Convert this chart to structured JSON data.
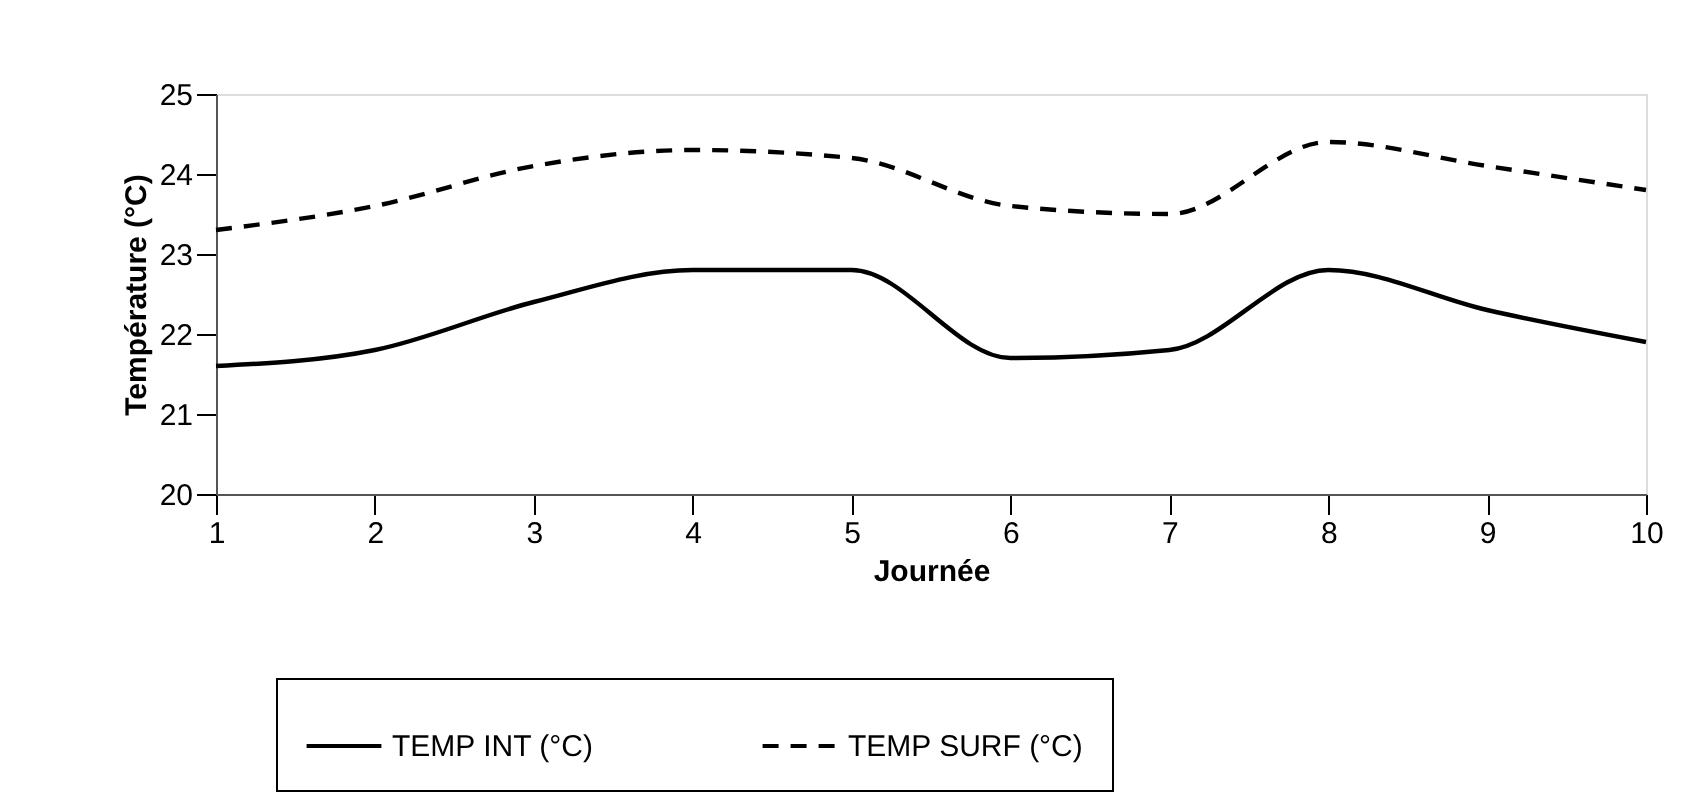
{
  "chart_data": {
    "type": "line",
    "xlabel": "Journée",
    "ylabel": "Température (°C)",
    "x": [
      1,
      2,
      3,
      4,
      5,
      6,
      7,
      8,
      9,
      10
    ],
    "series": [
      {
        "name": "TEMP INT (°C)",
        "color": "#000000",
        "line_style": "solid",
        "values": [
          21.6,
          21.8,
          22.4,
          22.8,
          22.8,
          21.7,
          21.8,
          22.8,
          22.3,
          21.9
        ]
      },
      {
        "name": "TEMP SURF (°C)",
        "color": "#000000",
        "line_style": "dashed",
        "values": [
          23.3,
          23.6,
          24.1,
          24.3,
          24.2,
          23.6,
          23.5,
          24.4,
          24.1,
          23.8
        ]
      }
    ],
    "xlim": [
      1,
      10
    ],
    "xticks": [
      1,
      2,
      3,
      4,
      5,
      6,
      7,
      8,
      9,
      10
    ],
    "ylim": [
      20,
      25
    ],
    "yticks": [
      20,
      21,
      22,
      23,
      24,
      25
    ],
    "grid": false,
    "legend": "bottom",
    "marker": "none"
  }
}
